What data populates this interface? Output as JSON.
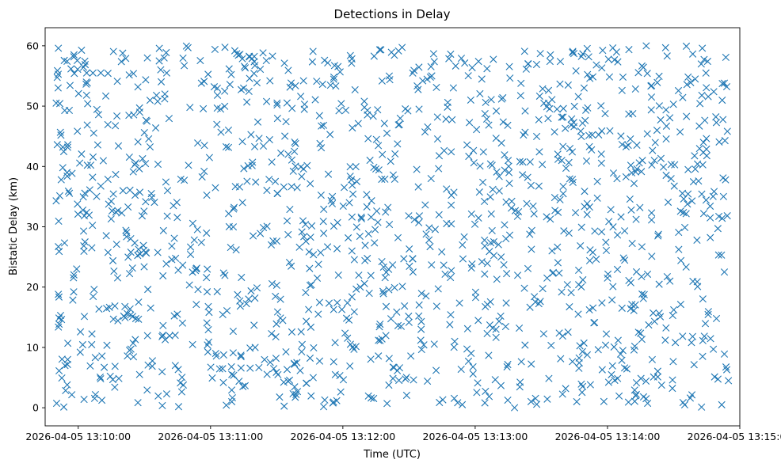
{
  "chart_data": {
    "type": "scatter",
    "title": "Detections in Delay",
    "xlabel": "Time (UTC)",
    "ylabel": "Bistatic Delay (km)",
    "marker": "x",
    "color": "#1f77b4",
    "grid": false,
    "legend": null,
    "x_axis": {
      "type": "datetime",
      "range": [
        "2026-04-05 13:09:45",
        "2026-04-05 13:15:00"
      ],
      "ticks": [
        "2026-04-05 13:10:00",
        "2026-04-05 13:11:00",
        "2026-04-05 13:12:00",
        "2026-04-05 13:13:00",
        "2026-04-05 13:14:00",
        "2026-04-05 13:15:00"
      ]
    },
    "y_axis": {
      "range": [
        -3,
        63
      ],
      "ticks": [
        0,
        10,
        20,
        30,
        40,
        50,
        60
      ]
    },
    "data_description": "approximately 1,400 detections spread uniformly over 2026-04-05 13:09:50 to 13:14:55 and 0 to 60 km",
    "x_start": "2026-04-05 13:09:50",
    "x_end": "2026-04-05 13:14:55",
    "y_min": 0,
    "y_max": 60,
    "point_count": 1400,
    "sample_points": [
      [
        "2026-04-05 13:09:51",
        59.6
      ],
      [
        "2026-04-05 13:09:50",
        50.5
      ],
      [
        "2026-04-05 13:09:50",
        34.3
      ],
      [
        "2026-04-05 13:09:51",
        26.7
      ],
      [
        "2026-04-05 13:09:51",
        18.8
      ],
      [
        "2026-04-05 13:09:52",
        15.3
      ],
      [
        "2026-04-05 13:09:53",
        43.2
      ],
      [
        "2026-04-05 13:09:53",
        39.8
      ],
      [
        "2026-04-05 13:09:54",
        7.0
      ],
      [
        "2026-04-05 13:09:55",
        3.8
      ],
      [
        "2026-04-05 13:10:30",
        45.6
      ],
      [
        "2026-04-05 13:11:02",
        59.4
      ],
      [
        "2026-04-05 13:11:30",
        20.3
      ],
      [
        "2026-04-05 13:12:10",
        24.4
      ],
      [
        "2026-04-05 13:12:20",
        45.5
      ],
      [
        "2026-04-05 13:12:40",
        38.0
      ],
      [
        "2026-04-05 13:12:58",
        51.0
      ],
      [
        "2026-04-05 13:13:20",
        13.2
      ],
      [
        "2026-04-05 13:13:40",
        49.6
      ],
      [
        "2026-04-05 13:14:00",
        21.5
      ],
      [
        "2026-04-05 13:14:20",
        53.4
      ],
      [
        "2026-04-05 13:14:43",
        59.6
      ],
      [
        "2026-04-05 13:14:48",
        9.7
      ],
      [
        "2026-04-05 13:14:53",
        53.8
      ],
      [
        "2026-04-05 13:14:52",
        31.4
      ],
      [
        "2026-04-05 13:14:53",
        22.5
      ],
      [
        "2026-04-05 13:14:53",
        8.9
      ]
    ]
  }
}
